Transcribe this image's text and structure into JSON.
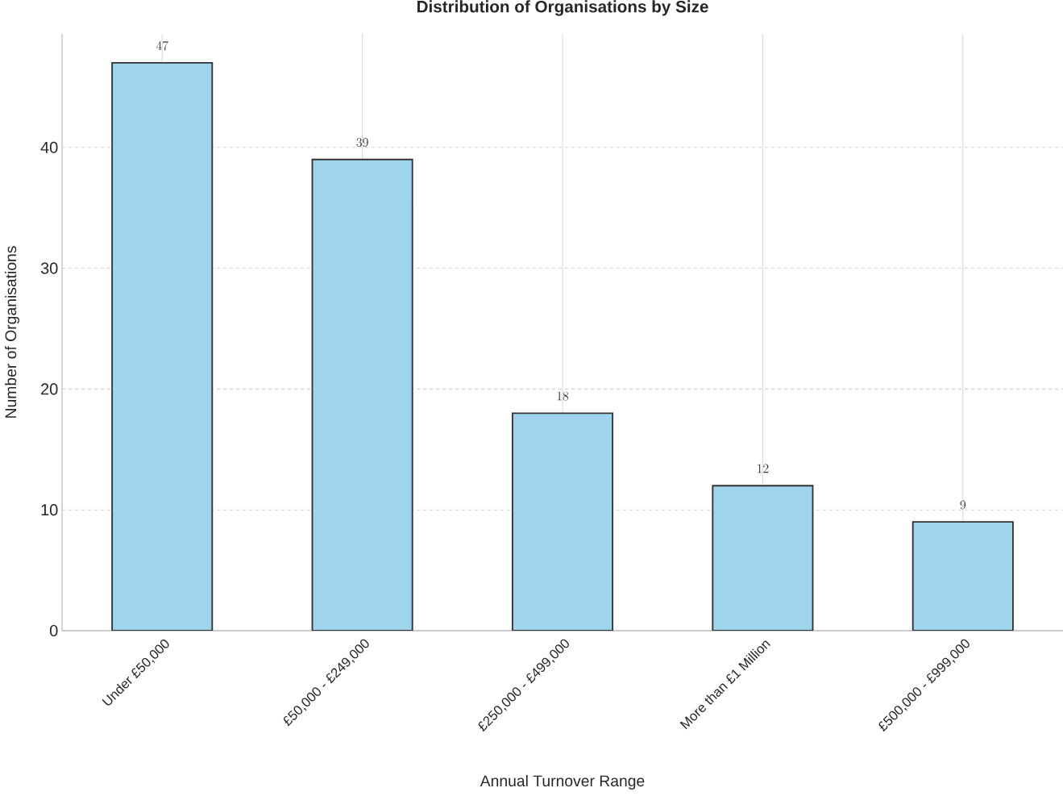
{
  "chart_data": {
    "type": "bar",
    "title": "Distribution of Organisations by Size",
    "xlabel": "Annual Turnover Range",
    "ylabel": "Number of Organisations",
    "categories": [
      "Under £50,000",
      "£50,000 - £249,000",
      "£250,000 - £499,000",
      "More than £1 Million",
      "£500,000 - £999,000"
    ],
    "values": [
      47,
      39,
      18,
      12,
      9
    ],
    "color": "#9fd5ec",
    "ylim": [
      0,
      49.4
    ],
    "yticks": [
      0,
      10,
      20,
      30,
      40
    ],
    "grid": true,
    "data_labels": true
  }
}
